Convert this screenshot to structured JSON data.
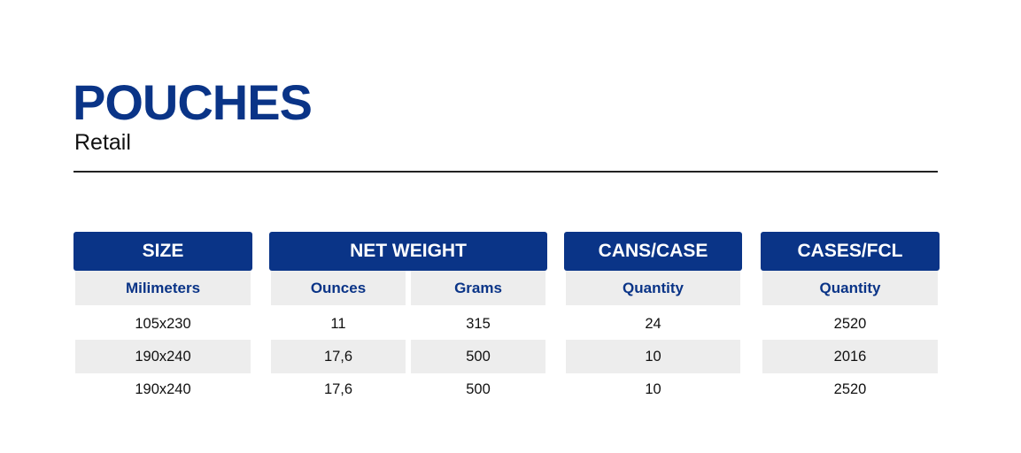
{
  "header": {
    "title": "POUCHES",
    "subtitle": "Retail"
  },
  "table": {
    "groups": [
      {
        "label": "SIZE",
        "subs": [
          "Milimeters"
        ]
      },
      {
        "label": "NET WEIGHT",
        "subs": [
          "Ounces",
          "Grams"
        ]
      },
      {
        "label": "CANS/CASE",
        "subs": [
          "Quantity"
        ]
      },
      {
        "label": "CASES/FCL",
        "subs": [
          "Quantity"
        ]
      }
    ],
    "rows": [
      [
        "105x230",
        "11",
        "315",
        "24",
        "2520"
      ],
      [
        "190x240",
        "17,6",
        "500",
        "10",
        "2016"
      ],
      [
        "190x240",
        "17,6",
        "500",
        "10",
        "2520"
      ]
    ]
  },
  "colors": {
    "brand_blue": "#0a3487",
    "row_shade": "#ededed"
  }
}
